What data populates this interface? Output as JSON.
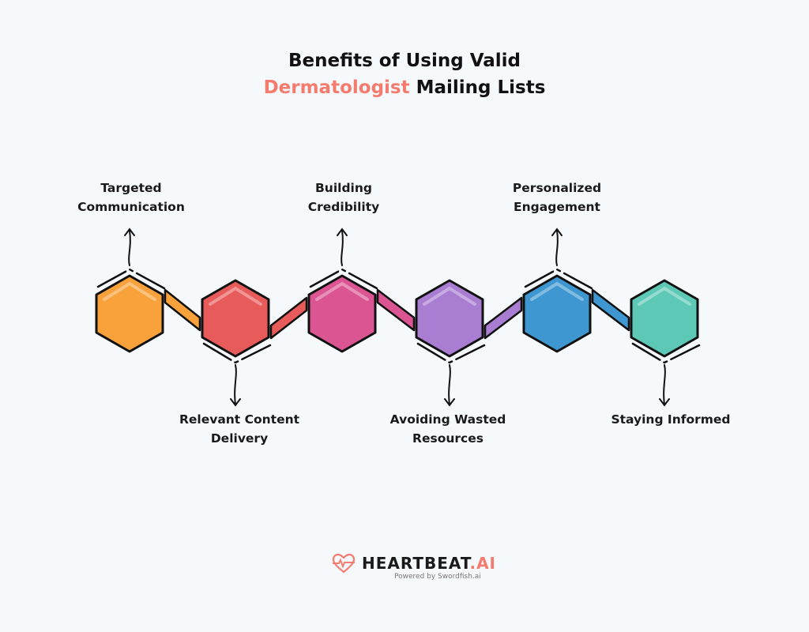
{
  "title": {
    "line1": "Benefits of Using Valid",
    "accent": "Dermatologist",
    "rest": " Mailing Lists",
    "accent_color": "#F47C6E"
  },
  "steps": [
    {
      "label": "Targeted Communication",
      "color": "#F9A23B",
      "position": "top"
    },
    {
      "label": "Relevant Content Delivery",
      "color": "#E85B5B",
      "position": "bottom"
    },
    {
      "label": "Building Credibility",
      "color": "#DB5593",
      "position": "top"
    },
    {
      "label": "Avoiding Wasted Resources",
      "color": "#A97DD1",
      "position": "bottom"
    },
    {
      "label": "Personalized Engagement",
      "color": "#3E97D0",
      "position": "top"
    },
    {
      "label": "Staying Informed",
      "color": "#5CC8B5",
      "position": "bottom"
    }
  ],
  "footer": {
    "brand": "HEARTBEAT",
    "brand_suffix": ".AI",
    "powered": "Powered by Swordfish.ai",
    "logo_icon": "heart-pulse-icon"
  }
}
